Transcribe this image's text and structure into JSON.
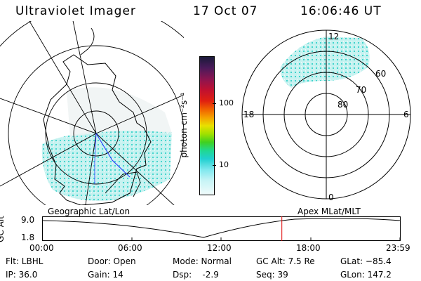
{
  "header": {
    "instrument": "Ultraviolet Imager",
    "date": "17 Oct 07",
    "time": "16:06:46 UT"
  },
  "colorbar": {
    "unit_label": "photon cm⁻²s⁻¹",
    "ticks": [
      "100",
      "10"
    ]
  },
  "polar_plot": {
    "mlt_labels": [
      "12",
      "18",
      "6",
      "0"
    ],
    "lat_labels": [
      "60",
      "70",
      "80"
    ]
  },
  "timeline": {
    "left_label": "Geographic Lat/Lon",
    "right_label": "Apex MLat/MLT",
    "axis_label": "GC Alt",
    "y_ticks": [
      "9.0",
      "1.8"
    ],
    "x_ticks": [
      "00:00",
      "06:00",
      "12:00",
      "18:00",
      "23:59"
    ],
    "current_fraction": 0.67,
    "line_color": "#000000",
    "marker_color": "#e00000"
  },
  "status": {
    "filter": "Flt: LBHL",
    "ip": "IP: 36.0",
    "door": "Door: Open",
    "gain": "Gain: 14",
    "mode": "Mode: Normal",
    "dsp": "Dsp:    -2.9",
    "gc_alt": "GC Alt: 7.5 Re",
    "seq": "Seq: 39",
    "glat": "GLat: −85.4",
    "glon": "GLon: 147.2"
  }
}
